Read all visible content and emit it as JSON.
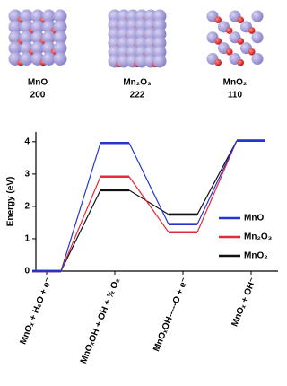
{
  "structures": [
    {
      "name": "MnO",
      "facet": "200"
    },
    {
      "name": "Mn₂O₃",
      "facet": "222"
    },
    {
      "name": "MnO₂",
      "facet": "110"
    }
  ],
  "chart_data": {
    "type": "energy-levels",
    "ylabel": "Energy (eV)",
    "categories": [
      "MnOₓ + H₂O + e⁻",
      "MnOₓOH + OH + ½ O₂",
      "MnOₓOH-----O + e⁻",
      "MnOₓ + OH⁻"
    ],
    "series": [
      {
        "name": "MnO",
        "color": "#2535c8",
        "values": [
          0,
          3.96,
          1.45,
          4.03
        ]
      },
      {
        "name": "Mn₂O₃",
        "color": "#e8283c",
        "values": [
          0,
          2.92,
          1.2,
          4.03
        ]
      },
      {
        "name": "MnO₂",
        "color": "#111111",
        "values": [
          0,
          2.5,
          1.75,
          4.03
        ]
      }
    ],
    "ylim": [
      0,
      4.3
    ],
    "yticks": [
      0,
      1,
      2,
      3,
      4
    ]
  }
}
